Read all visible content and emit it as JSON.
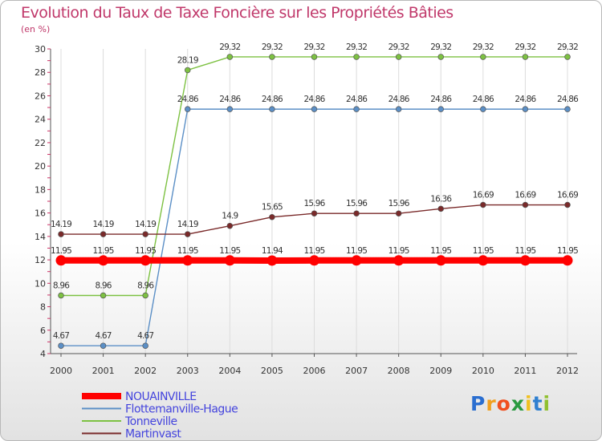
{
  "chart_data": {
    "type": "line",
    "title": "Evolution du Taux de Taxe Foncière sur les Propriétés Bâties",
    "ylabel": "(en %)",
    "xlabel": "",
    "ylim": [
      4,
      30
    ],
    "yticks": [
      "4",
      "6",
      "8",
      "10",
      "12",
      "14",
      "16",
      "18",
      "20",
      "22",
      "24",
      "26",
      "28",
      "30"
    ],
    "categories": [
      "2000",
      "2001",
      "2002",
      "2003",
      "2004",
      "2005",
      "2006",
      "2007",
      "2008",
      "2009",
      "2010",
      "2011",
      "2012"
    ],
    "series": [
      {
        "name": "Tonneville",
        "color": "#7dc142",
        "values": [
          8.96,
          8.96,
          8.96,
          28.19,
          29.32,
          29.32,
          29.32,
          29.32,
          29.32,
          29.32,
          29.32,
          29.32,
          29.32
        ],
        "labels": [
          "8.96",
          "8.96",
          "8.96",
          "28.19",
          "29.32",
          "29.32",
          "29.32",
          "29.32",
          "29.32",
          "29.32",
          "29.32",
          "29.32",
          "29.32"
        ]
      },
      {
        "name": "Flottemanville-Hague",
        "color": "#5b8fc6",
        "values": [
          4.67,
          4.67,
          4.67,
          24.86,
          24.86,
          24.86,
          24.86,
          24.86,
          24.86,
          24.86,
          24.86,
          24.86,
          24.86
        ],
        "labels": [
          "4.67",
          "4.67",
          "4.67",
          "24.86",
          "24.86",
          "24.86",
          "24.86",
          "24.86",
          "24.86",
          "24.86",
          "24.86",
          "24.86",
          "24.86"
        ]
      },
      {
        "name": "Martinvast",
        "color": "#7a2a2a",
        "values": [
          14.19,
          14.19,
          14.19,
          14.19,
          14.9,
          15.65,
          15.96,
          15.96,
          15.96,
          16.36,
          16.69,
          16.69,
          16.69
        ],
        "labels": [
          "14.19",
          "14.19",
          "14.19",
          "14.19",
          "14.9",
          "15.65",
          "15.96",
          "15.96",
          "15.96",
          "16.36",
          "16.69",
          "16.69",
          "16.69"
        ]
      },
      {
        "name": "NOUAINVILLE",
        "color": "#ff0000",
        "values": [
          11.95,
          11.95,
          11.95,
          11.95,
          11.95,
          11.94,
          11.95,
          11.95,
          11.95,
          11.95,
          11.95,
          11.95,
          11.95
        ],
        "labels": [
          "11.95",
          "11.95",
          "11.95",
          "11.95",
          "11.95",
          "11.94",
          "11.95",
          "11.95",
          "11.95",
          "11.95",
          "11.95",
          "11.95",
          "11.95"
        ]
      }
    ],
    "legend": {
      "position": "bottom-left",
      "entries": [
        {
          "name": "NOUAINVILLE",
          "color": "#ff0000"
        },
        {
          "name": "Flottemanville-Hague",
          "color": "#5b8fc6"
        },
        {
          "name": "Tonneville",
          "color": "#7dc142"
        },
        {
          "name": "Martinvast",
          "color": "#7a2a2a"
        }
      ],
      "text_color": "#4444dd"
    },
    "grid": "vertical"
  },
  "logo": {
    "letters": [
      "P",
      "r",
      "o",
      "x",
      "i",
      "t",
      "i"
    ],
    "colors": [
      "#2a6ed0",
      "#f0a020",
      "#f05020",
      "#2a9a40",
      "#f0c020",
      "#3080d0",
      "#90c030"
    ]
  }
}
